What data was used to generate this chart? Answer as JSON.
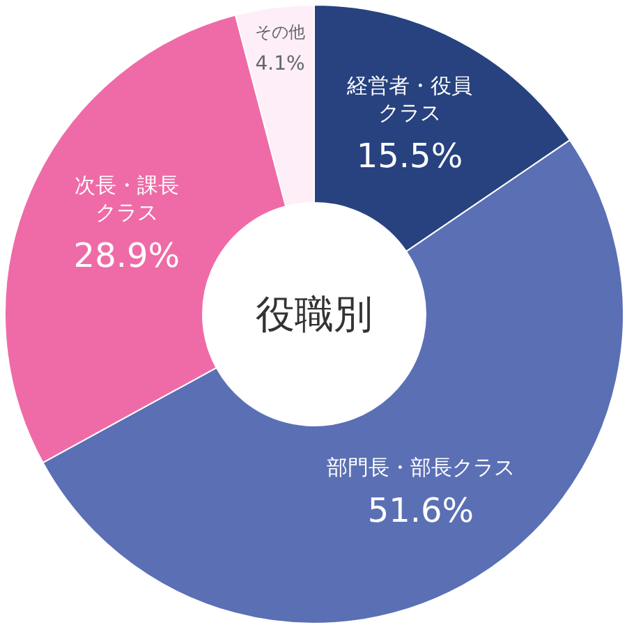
{
  "chart_data": {
    "type": "donut",
    "title": "役職別",
    "categories": [
      "経営者・役員クラス",
      "部門長・部長クラス",
      "次長・課長クラス",
      "その他"
    ],
    "values": [
      15.5,
      51.6,
      28.9,
      4.1
    ],
    "colors": [
      "#27427f",
      "#5b6fb4",
      "#ef6ba7",
      "#fdeef8"
    ],
    "value_labels": [
      "15.5%",
      "51.6%",
      "28.9%",
      "4.1%"
    ]
  }
}
